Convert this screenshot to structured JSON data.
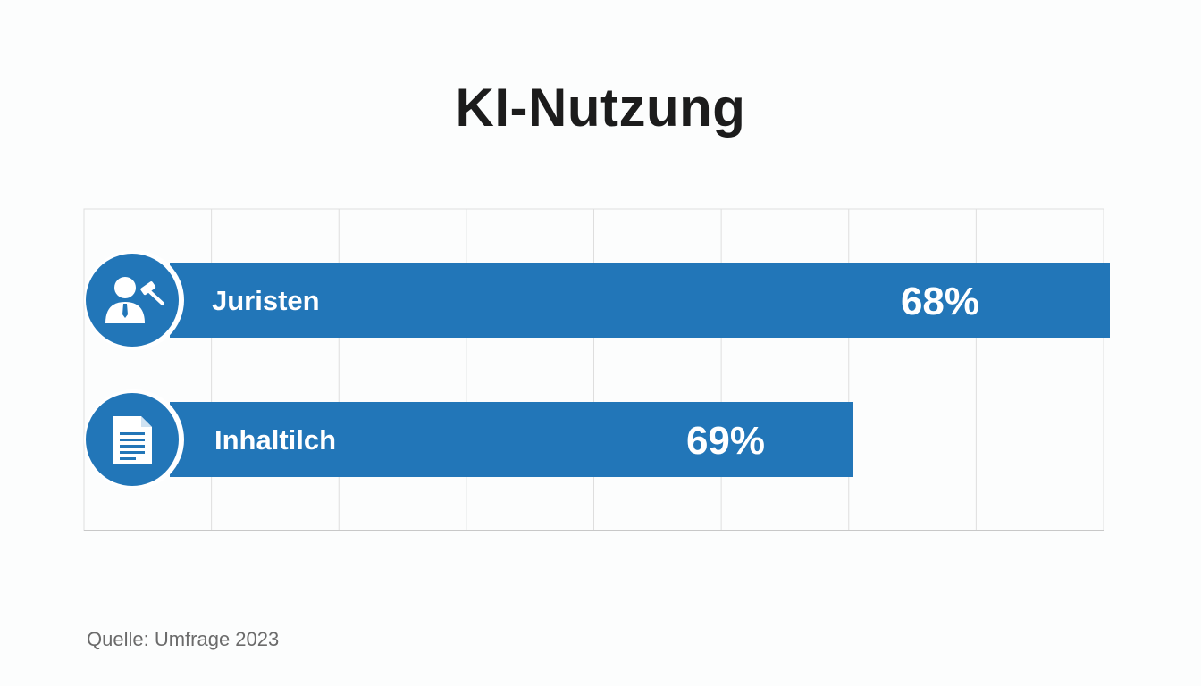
{
  "title": "KI-Nutzung",
  "source": "Quelle: Umfrage 2023",
  "colors": {
    "bar": "#2276b8",
    "icon_circle": "#2276b8",
    "grid": "#dedede",
    "axis": "#c8c8c8"
  },
  "chart_data": {
    "type": "bar",
    "orientation": "horizontal",
    "title": "KI-Nutzung",
    "categories": [
      "Juristen",
      "Inhaltilch"
    ],
    "values": [
      68,
      69
    ],
    "value_labels": [
      "68%",
      "69%"
    ],
    "icons": [
      "lawyer-gavel-icon",
      "document-icon"
    ],
    "grid": true,
    "xlim": [
      0,
      100
    ]
  }
}
